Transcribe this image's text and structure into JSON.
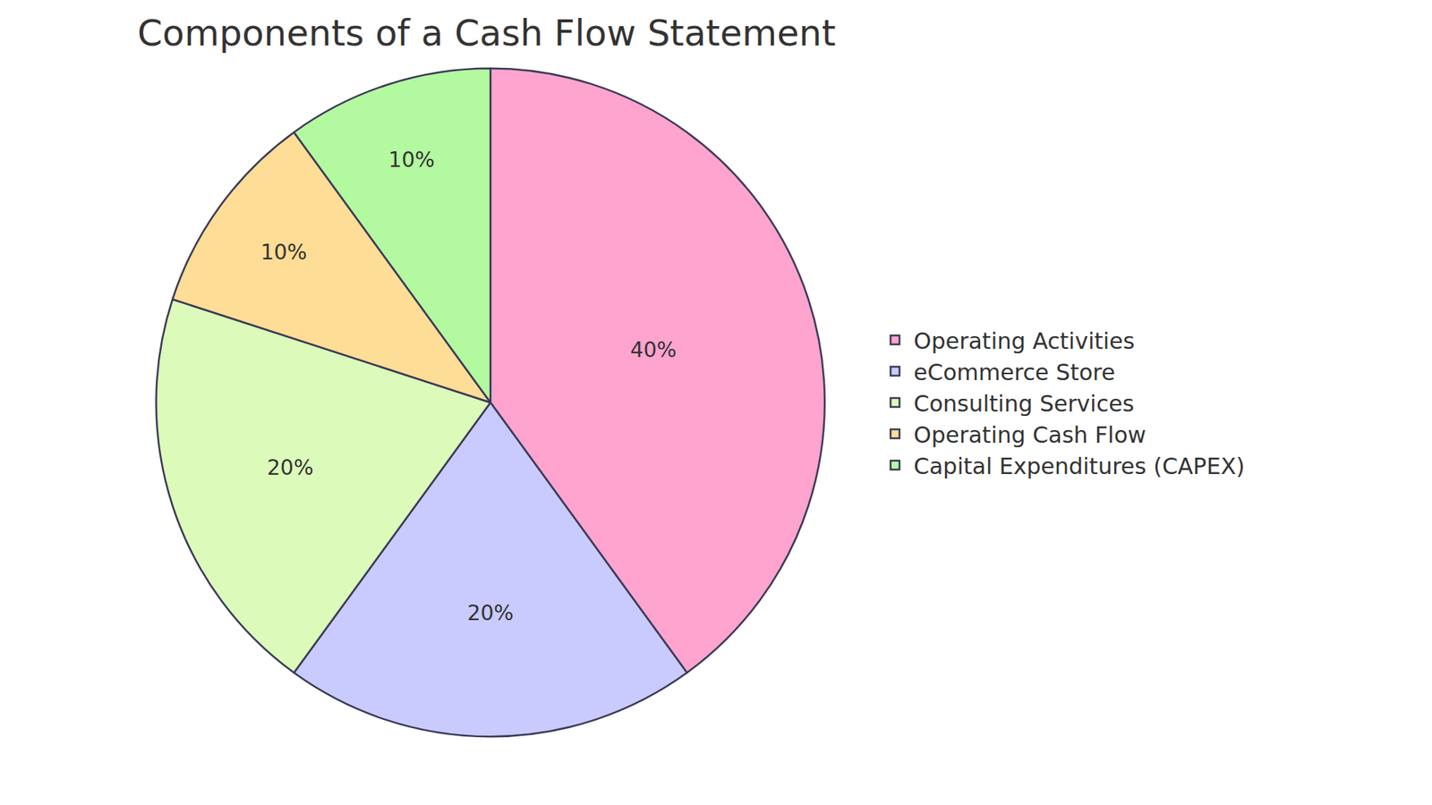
{
  "chart_data": {
    "type": "pie",
    "title": "Components of a Cash Flow Statement",
    "categories": [
      "Operating Activities",
      "eCommerce Store",
      "Consulting Services",
      "Operating Cash Flow",
      "Capital Expenditures (CAPEX)"
    ],
    "values": [
      40,
      20,
      20,
      10,
      10
    ],
    "value_labels": [
      "40%",
      "20%",
      "20%",
      "10%",
      "10%"
    ],
    "colors": [
      "#ffa3cf",
      "#c9cbff",
      "#dcfab9",
      "#fedd96",
      "#b3f9a0"
    ],
    "data_labels": true,
    "legend": "right"
  }
}
